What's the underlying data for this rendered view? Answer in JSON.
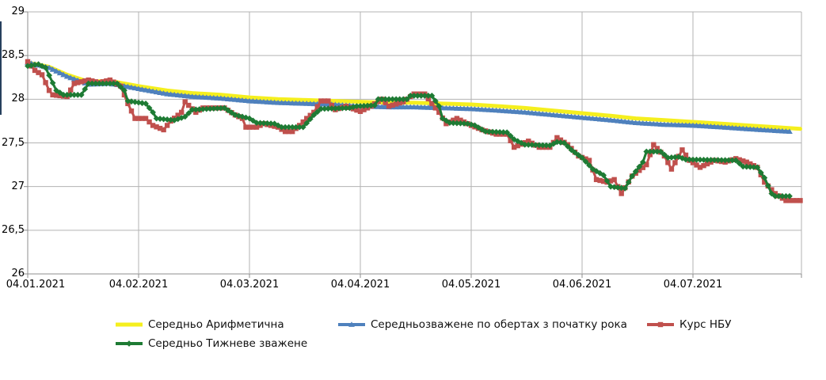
{
  "chart": {
    "type": "line",
    "title": "",
    "legend_position": "bottom",
    "grid": true,
    "colors": {
      "background": "#ffffff",
      "gridline": "#b3b3b3",
      "axis": "#8c8c8c",
      "text": "#000000"
    },
    "y_axis": {
      "min": 26,
      "max": 29,
      "step": 0.5,
      "ticks": [
        {
          "label": "29",
          "value": 29
        },
        {
          "label": "28,5",
          "value": 28.5
        },
        {
          "label": "28",
          "value": 28
        },
        {
          "label": "27,5",
          "value": 27.5
        },
        {
          "label": "27",
          "value": 27
        },
        {
          "label": "26,5",
          "value": 26.5
        },
        {
          "label": "26",
          "value": 26
        }
      ]
    },
    "x_axis": {
      "ticks": [
        {
          "label": "04.01.2021",
          "day": 0
        },
        {
          "label": "04.02.2021",
          "day": 31
        },
        {
          "label": "04.03.2021",
          "day": 62
        },
        {
          "label": "04.04.2021",
          "day": 93
        },
        {
          "label": "04.05.2021",
          "day": 124
        },
        {
          "label": "04.06.2021",
          "day": 155
        },
        {
          "label": "04.07.2021",
          "day": 186
        }
      ],
      "domain_days": [
        0,
        216
      ]
    },
    "series": [
      {
        "name": "Середньо Арифметична",
        "color": "#F5EF1E",
        "marker": "none",
        "width": 5,
        "points": [
          [
            0,
            28.42
          ],
          [
            6,
            28.37
          ],
          [
            11,
            28.28
          ],
          [
            17,
            28.2
          ],
          [
            23,
            28.21
          ],
          [
            31,
            28.15
          ],
          [
            39,
            28.1
          ],
          [
            46,
            28.07
          ],
          [
            54,
            28.05
          ],
          [
            62,
            28.02
          ],
          [
            70,
            28.0
          ],
          [
            78,
            27.99
          ],
          [
            85,
            27.98
          ],
          [
            93,
            27.97
          ],
          [
            101,
            27.96
          ],
          [
            108,
            27.96
          ],
          [
            116,
            27.95
          ],
          [
            124,
            27.94
          ],
          [
            132,
            27.92
          ],
          [
            139,
            27.9
          ],
          [
            147,
            27.87
          ],
          [
            155,
            27.84
          ],
          [
            163,
            27.81
          ],
          [
            170,
            27.78
          ],
          [
            178,
            27.76
          ],
          [
            186,
            27.74
          ],
          [
            194,
            27.72
          ],
          [
            201,
            27.7
          ],
          [
            209,
            27.68
          ],
          [
            216,
            27.66
          ]
        ]
      },
      {
        "name": "Середньозважене по обертах з початку рока",
        "color": "#4F81BD",
        "marker": "triangle",
        "width": 4,
        "points": [
          [
            0,
            28.42
          ],
          [
            6,
            28.36
          ],
          [
            11,
            28.26
          ],
          [
            17,
            28.17
          ],
          [
            23,
            28.18
          ],
          [
            31,
            28.12
          ],
          [
            39,
            28.06
          ],
          [
            46,
            28.03
          ],
          [
            54,
            28.01
          ],
          [
            62,
            27.98
          ],
          [
            70,
            27.96
          ],
          [
            78,
            27.95
          ],
          [
            85,
            27.94
          ],
          [
            93,
            27.92
          ],
          [
            101,
            27.91
          ],
          [
            108,
            27.91
          ],
          [
            116,
            27.9
          ],
          [
            124,
            27.89
          ],
          [
            132,
            27.87
          ],
          [
            139,
            27.85
          ],
          [
            147,
            27.82
          ],
          [
            155,
            27.79
          ],
          [
            163,
            27.76
          ],
          [
            170,
            27.73
          ],
          [
            178,
            27.71
          ],
          [
            186,
            27.7
          ],
          [
            194,
            27.68
          ],
          [
            201,
            27.66
          ],
          [
            209,
            27.64
          ],
          [
            213,
            27.63
          ]
        ]
      },
      {
        "name": "Курс НБУ",
        "color": "#C0504D",
        "marker": "square",
        "width": 3,
        "points": [
          [
            0,
            28.43
          ],
          [
            2,
            28.33
          ],
          [
            4,
            28.28
          ],
          [
            6,
            28.1
          ],
          [
            7,
            28.05
          ],
          [
            11,
            28.03
          ],
          [
            13,
            28.18
          ],
          [
            17,
            28.22
          ],
          [
            20,
            28.19
          ],
          [
            23,
            28.22
          ],
          [
            26,
            28.15
          ],
          [
            27,
            28.05
          ],
          [
            28,
            27.95
          ],
          [
            30,
            27.78
          ],
          [
            33,
            27.78
          ],
          [
            35,
            27.7
          ],
          [
            38,
            27.65
          ],
          [
            40,
            27.75
          ],
          [
            43,
            27.85
          ],
          [
            44,
            27.97
          ],
          [
            47,
            27.85
          ],
          [
            49,
            27.9
          ],
          [
            55,
            27.9
          ],
          [
            58,
            27.82
          ],
          [
            60,
            27.78
          ],
          [
            61,
            27.68
          ],
          [
            64,
            27.68
          ],
          [
            66,
            27.72
          ],
          [
            70,
            27.68
          ],
          [
            72,
            27.63
          ],
          [
            74,
            27.63
          ],
          [
            76,
            27.7
          ],
          [
            78,
            27.78
          ],
          [
            80,
            27.85
          ],
          [
            82,
            27.98
          ],
          [
            84,
            27.98
          ],
          [
            86,
            27.88
          ],
          [
            89,
            27.92
          ],
          [
            93,
            27.86
          ],
          [
            96,
            27.92
          ],
          [
            99,
            28.0
          ],
          [
            101,
            27.92
          ],
          [
            105,
            27.97
          ],
          [
            108,
            28.06
          ],
          [
            111,
            28.06
          ],
          [
            113,
            27.95
          ],
          [
            115,
            27.85
          ],
          [
            117,
            27.72
          ],
          [
            120,
            27.78
          ],
          [
            124,
            27.7
          ],
          [
            127,
            27.65
          ],
          [
            131,
            27.6
          ],
          [
            134,
            27.6
          ],
          [
            136,
            27.45
          ],
          [
            140,
            27.52
          ],
          [
            143,
            27.45
          ],
          [
            146,
            27.45
          ],
          [
            148,
            27.56
          ],
          [
            151,
            27.48
          ],
          [
            154,
            27.35
          ],
          [
            157,
            27.3
          ],
          [
            159,
            27.08
          ],
          [
            162,
            27.05
          ],
          [
            164,
            27.08
          ],
          [
            166,
            26.92
          ],
          [
            169,
            27.12
          ],
          [
            173,
            27.25
          ],
          [
            175,
            27.48
          ],
          [
            178,
            27.35
          ],
          [
            180,
            27.2
          ],
          [
            183,
            27.42
          ],
          [
            185,
            27.3
          ],
          [
            188,
            27.22
          ],
          [
            192,
            27.3
          ],
          [
            195,
            27.28
          ],
          [
            198,
            27.32
          ],
          [
            201,
            27.28
          ],
          [
            204,
            27.22
          ],
          [
            206,
            27.05
          ],
          [
            209,
            26.92
          ],
          [
            212,
            26.84
          ],
          [
            216,
            26.84
          ]
        ]
      },
      {
        "name": "Середньо Тижневе зважене",
        "color": "#1E7B34",
        "marker": "diamond",
        "width": 3,
        "points": [
          [
            0,
            28.38
          ],
          [
            3,
            28.4
          ],
          [
            5,
            28.36
          ],
          [
            8,
            28.1
          ],
          [
            10,
            28.05
          ],
          [
            15,
            28.05
          ],
          [
            17,
            28.18
          ],
          [
            25,
            28.18
          ],
          [
            27,
            28.1
          ],
          [
            28,
            27.98
          ],
          [
            33,
            27.95
          ],
          [
            35,
            27.85
          ],
          [
            36,
            27.78
          ],
          [
            41,
            27.76
          ],
          [
            44,
            27.8
          ],
          [
            46,
            27.88
          ],
          [
            55,
            27.9
          ],
          [
            58,
            27.82
          ],
          [
            62,
            27.78
          ],
          [
            64,
            27.73
          ],
          [
            69,
            27.72
          ],
          [
            71,
            27.68
          ],
          [
            77,
            27.68
          ],
          [
            80,
            27.82
          ],
          [
            82,
            27.89
          ],
          [
            90,
            27.9
          ],
          [
            92,
            27.92
          ],
          [
            97,
            27.93
          ],
          [
            98,
            28.0
          ],
          [
            106,
            28.0
          ],
          [
            107,
            28.04
          ],
          [
            113,
            28.04
          ],
          [
            115,
            27.92
          ],
          [
            116,
            27.78
          ],
          [
            118,
            27.73
          ],
          [
            123,
            27.72
          ],
          [
            125,
            27.7
          ],
          [
            128,
            27.63
          ],
          [
            134,
            27.62
          ],
          [
            136,
            27.54
          ],
          [
            139,
            27.48
          ],
          [
            146,
            27.47
          ],
          [
            148,
            27.51
          ],
          [
            150,
            27.5
          ],
          [
            152,
            27.42
          ],
          [
            155,
            27.33
          ],
          [
            158,
            27.2
          ],
          [
            161,
            27.13
          ],
          [
            163,
            27.0
          ],
          [
            167,
            26.98
          ],
          [
            169,
            27.12
          ],
          [
            172,
            27.28
          ],
          [
            173,
            27.4
          ],
          [
            177,
            27.4
          ],
          [
            179,
            27.33
          ],
          [
            182,
            27.34
          ],
          [
            184,
            27.31
          ],
          [
            198,
            27.3
          ],
          [
            200,
            27.23
          ],
          [
            204,
            27.22
          ],
          [
            206,
            27.1
          ],
          [
            208,
            26.92
          ],
          [
            209,
            26.89
          ],
          [
            213,
            26.89
          ]
        ]
      }
    ]
  },
  "chart_data": {
    "type": "line",
    "title": "",
    "xlabel": "",
    "ylabel": "",
    "x_tick_labels": [
      "04.01.2021",
      "04.02.2021",
      "04.03.2021",
      "04.04.2021",
      "04.05.2021",
      "04.06.2021",
      "04.07.2021"
    ],
    "y_tick_labels": [
      "29",
      "28,5",
      "28",
      "27,5",
      "27",
      "26,5",
      "26"
    ],
    "ylim": [
      26,
      29
    ],
    "grid": true,
    "legend_position": "bottom",
    "series_names": [
      "Середньо Арифметична",
      "Середньозважене по обертах з початку рока",
      "Курс НБУ",
      "Середньо Тижневе зважене"
    ],
    "note": "numeric points stored under chart.series[].points as [day_offset_from_04.01.2021, rate]"
  }
}
